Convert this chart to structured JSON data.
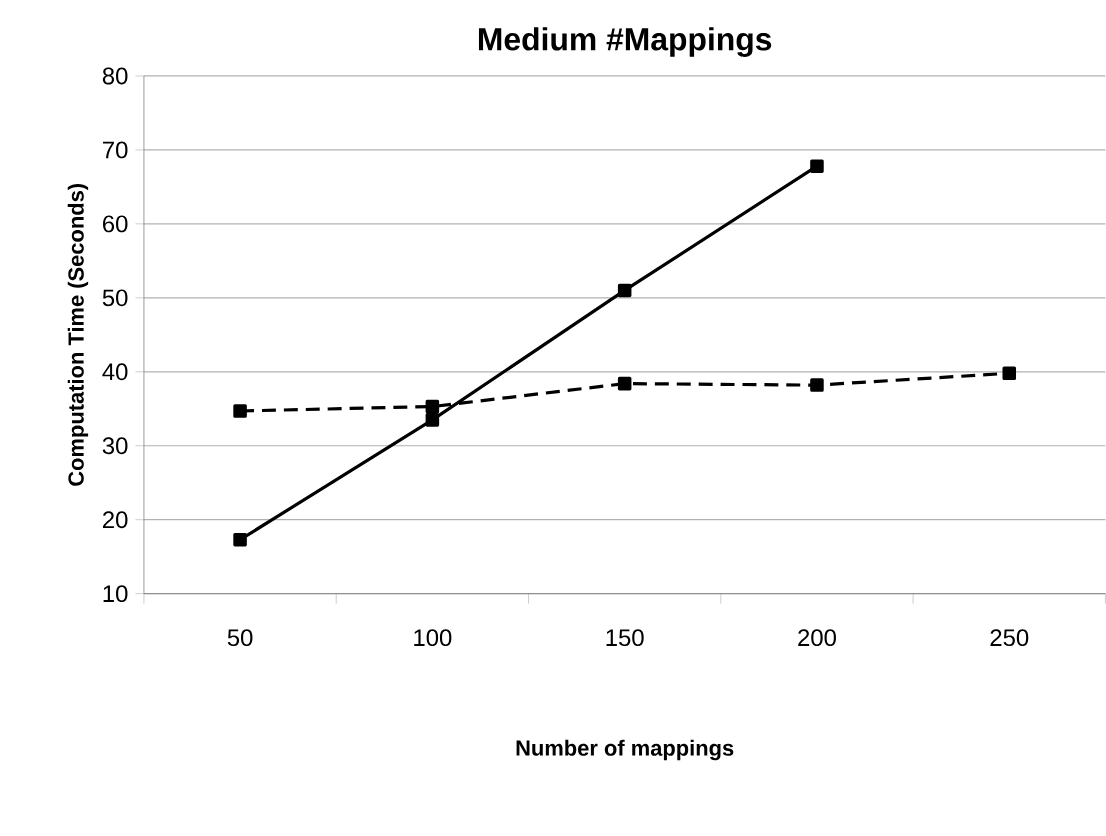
{
  "chart_data": {
    "type": "line",
    "title": "Medium #Mappings",
    "xlabel": "Number of mappings",
    "ylabel": "Computation Time (Seconds)",
    "categories": [
      "50",
      "100",
      "150",
      "200",
      "250"
    ],
    "series": [
      {
        "color": "#000000",
        "line_style": "solid",
        "values": [
          17.3,
          33.5,
          51,
          67.8,
          null
        ]
      },
      {
        "color": "#000000",
        "line_style": "dashed",
        "values": [
          34.7,
          35.3,
          38.4,
          38.2,
          39.8
        ]
      }
    ],
    "ylim": [
      10,
      80
    ],
    "yticks": [
      10,
      20,
      30,
      40,
      50,
      60,
      70,
      80
    ],
    "grid": "y",
    "marker": "square"
  }
}
